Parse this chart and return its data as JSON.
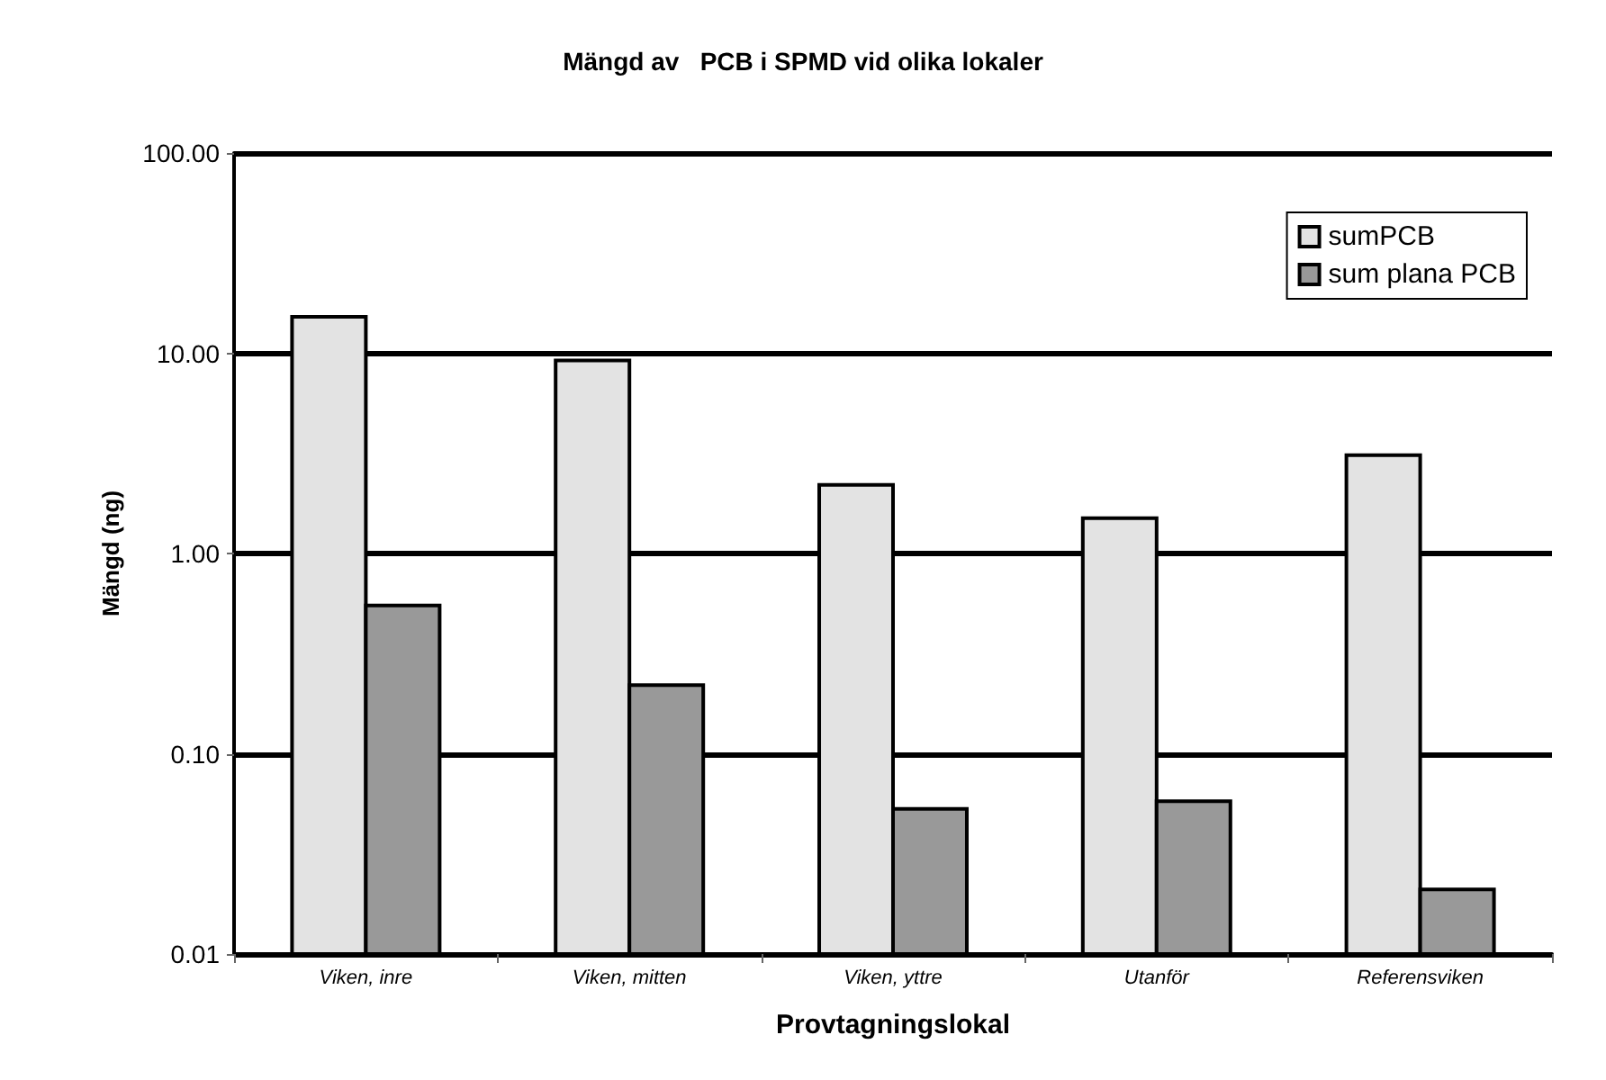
{
  "chart_data": {
    "type": "bar",
    "title": "Mängd av   PCB i SPMD vid olika lokaler",
    "xlabel": "Provtagningslokal",
    "ylabel": "Mängd (ng)",
    "categories": [
      "Viken, inre",
      "Viken, mitten",
      "Viken, yttre",
      "Utanför",
      "Referensviken"
    ],
    "series": [
      {
        "name": "sumPCB",
        "color": "#e3e3e3",
        "values": [
          15.2,
          9.2,
          2.2,
          1.5,
          3.1
        ]
      },
      {
        "name": "sum plana PCB",
        "color": "#999999",
        "values": [
          0.55,
          0.22,
          0.053,
          0.058,
          0.021
        ]
      }
    ],
    "log": "y",
    "ylim": [
      0.01,
      100
    ],
    "yticks": [
      {
        "value": 0.01,
        "label": "0.01"
      },
      {
        "value": 0.1,
        "label": "0.10"
      },
      {
        "value": 1,
        "label": "1.00"
      },
      {
        "value": 10,
        "label": "10.00"
      },
      {
        "value": 100,
        "label": "100.00"
      }
    ],
    "grid": "y",
    "legend": "top right"
  }
}
